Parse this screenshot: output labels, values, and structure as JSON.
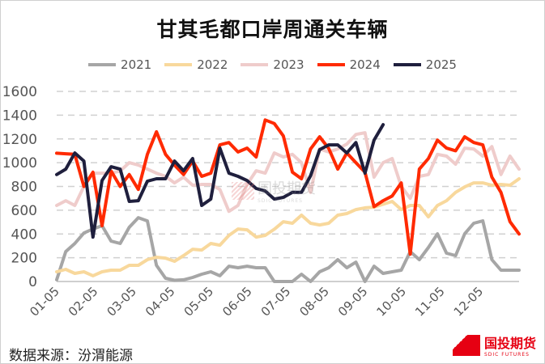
{
  "chart_data": {
    "type": "line",
    "title": "甘其毛都口岸周通关车辆",
    "xlabel": "",
    "ylabel": "",
    "ylim": [
      0,
      1600
    ],
    "yticks": [
      0,
      200,
      400,
      600,
      800,
      1000,
      1200,
      1400,
      1600
    ],
    "x_tick_labels": [
      "01-05",
      "02-05",
      "03-05",
      "04-05",
      "05-05",
      "06-05",
      "07-05",
      "08-05",
      "09-05",
      "10-05",
      "11-05",
      "12-05"
    ],
    "grid": "horizontal dashed",
    "legend_position": "top",
    "series": [
      {
        "name": "2021",
        "color": "#a6a6a6",
        "values": [
          14,
          252,
          320,
          408,
          442,
          470,
          340,
          320,
          456,
          537,
          510,
          136,
          27,
          10,
          14,
          34,
          61,
          82,
          48,
          129,
          116,
          129,
          116,
          116,
          0,
          0,
          0,
          61,
          0,
          82,
          116,
          184,
          116,
          163,
          0,
          129,
          68,
          82,
          95,
          252,
          184,
          286,
          401,
          238,
          218,
          401,
          490,
          510,
          184,
          95,
          95,
          95
        ]
      },
      {
        "name": "2022",
        "color": "#f8d89c",
        "values": [
          82,
          102,
          68,
          82,
          48,
          82,
          95,
          95,
          136,
          136,
          184,
          204,
          197,
          170,
          218,
          272,
          265,
          320,
          306,
          388,
          442,
          435,
          374,
          388,
          440,
          503,
          490,
          558,
          490,
          476,
          490,
          558,
          572,
          605,
          620,
          626,
          650,
          674,
          605,
          640,
          640,
          544,
          640,
          680,
          750,
          796,
          830,
          830,
          810,
          817,
          810,
          865
        ]
      },
      {
        "name": "2023",
        "color": "#efcccb",
        "values": [
          640,
          680,
          640,
          800,
          912,
          912,
          912,
          930,
          1000,
          980,
          946,
          912,
          885,
          830,
          878,
          810,
          817,
          817,
          775,
          590,
          640,
          817,
          932,
          912,
          1082,
          1048,
          1070,
          1000,
          750,
          1115,
          1090,
          1115,
          1157,
          1238,
          1252,
          878,
          1000,
          1035,
          800,
          700,
          885,
          900,
          1070,
          1055,
          987,
          1123,
          1115,
          1055,
          1136,
          900,
          1055,
          946
        ]
      },
      {
        "name": "2024",
        "color": "#ff2a00",
        "values": [
          1080,
          1075,
          1070,
          800,
          920,
          470,
          930,
          800,
          900,
          775,
          1070,
          1260,
          1070,
          980,
          900,
          1014,
          885,
          912,
          1150,
          1170,
          1090,
          1123,
          1048,
          1360,
          1330,
          1225,
          920,
          865,
          1115,
          1218,
          1120,
          946,
          1082,
          1000,
          920,
          630,
          680,
          720,
          830,
          230,
          946,
          1035,
          1190,
          1123,
          1100,
          1218,
          1170,
          1150,
          878,
          750,
          503,
          400
        ]
      },
      {
        "name": "2025",
        "color": "#1f1f3d",
        "values": [
          900,
          946,
          1082,
          1014,
          374,
          850,
          966,
          946,
          674,
          680,
          844,
          865,
          865,
          1014,
          932,
          1035,
          640,
          694,
          1123,
          912,
          885,
          850,
          783,
          762,
          694,
          708,
          750,
          750,
          890,
          1110,
          1150,
          1150,
          1082,
          1170,
          912,
          1190,
          1320
        ]
      }
    ]
  },
  "source": "数据来源：汾渭能源",
  "logo": {
    "cn": "国投期货",
    "en": "SDIC FUTURES"
  },
  "watermark": {
    "cn": "国投期货",
    "en": "SDIC FUTURES"
  }
}
